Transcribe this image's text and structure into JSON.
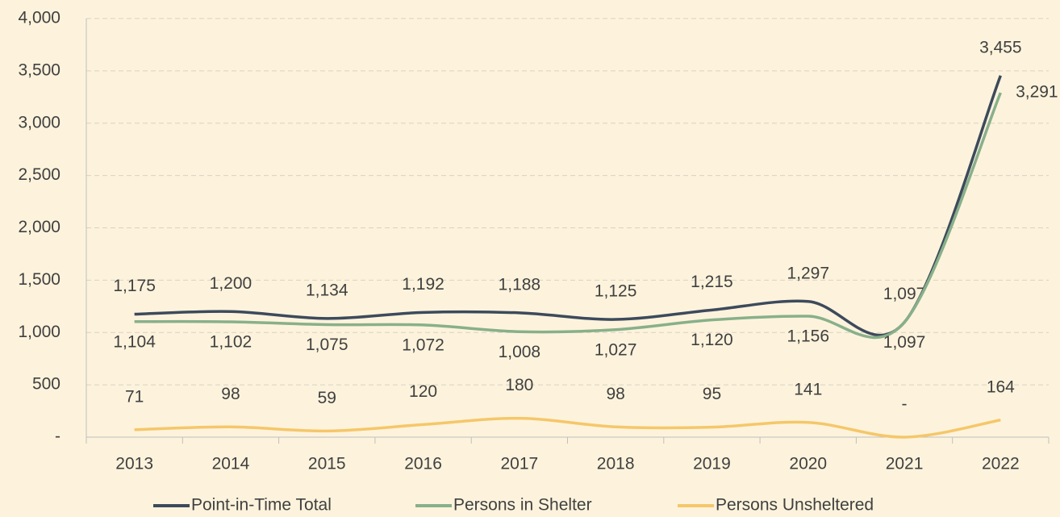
{
  "chart_data": {
    "type": "line",
    "categories": [
      "2013",
      "2014",
      "2015",
      "2016",
      "2017",
      "2018",
      "2019",
      "2020",
      "2021",
      "2022"
    ],
    "series": [
      {
        "name": "Point-in-Time Total",
        "color": "#3d4a5c",
        "values": [
          1175,
          1200,
          1134,
          1192,
          1188,
          1125,
          1215,
          1297,
          1097,
          3455
        ],
        "value_labels": [
          "1,175",
          "1,200",
          "1,134",
          "1,192",
          "1,188",
          "1,125",
          "1,215",
          "1,297",
          "1,097",
          "3,455"
        ]
      },
      {
        "name": "Persons in Shelter",
        "color": "#88b08a",
        "values": [
          1104,
          1102,
          1075,
          1072,
          1008,
          1027,
          1120,
          1156,
          1097,
          3291
        ],
        "value_labels": [
          "1,104",
          "1,102",
          "1,075",
          "1,072",
          "1,008",
          "1,027",
          "1,120",
          "1,156",
          "1,097",
          "3,291"
        ]
      },
      {
        "name": "Persons Unsheltered",
        "color": "#f5c76a",
        "values": [
          71,
          98,
          59,
          120,
          180,
          98,
          95,
          141,
          0,
          164
        ],
        "value_labels": [
          "71",
          "98",
          "59",
          "120",
          "180",
          "98",
          "95",
          "141",
          "-",
          "164"
        ]
      }
    ],
    "ylim": [
      0,
      4000
    ],
    "yticks": [
      {
        "value": 0,
        "label": "-"
      },
      500,
      {
        "value": 1000,
        "label": "1,000"
      },
      {
        "value": 1500,
        "label": "1,500"
      },
      {
        "value": 2000,
        "label": "2,000"
      },
      {
        "value": 2500,
        "label": "2,500"
      },
      {
        "value": 3000,
        "label": "3,000"
      },
      {
        "value": 3500,
        "label": "3,500"
      },
      {
        "value": 4000,
        "label": "4,000"
      }
    ],
    "grid": true,
    "legend": "bottom"
  }
}
